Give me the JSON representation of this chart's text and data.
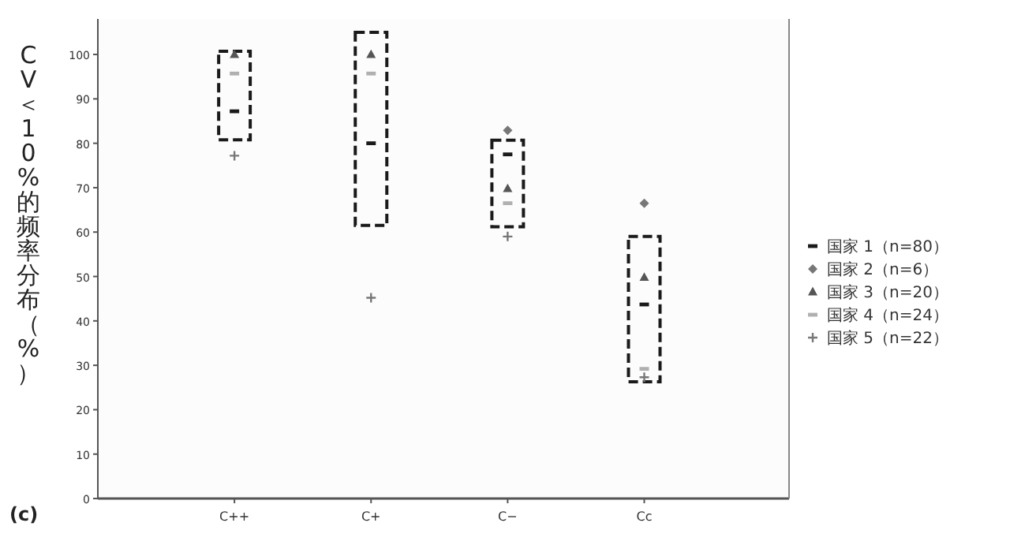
{
  "chart_data": {
    "type": "bar",
    "ylabel": "CV＜10%的频率分布（%）",
    "annotations": [
      "(c)"
    ],
    "categories": [
      "C++",
      "C+",
      "C−",
      "Cc"
    ],
    "ylim": [
      0,
      108
    ],
    "yticks": [
      0,
      10,
      20,
      30,
      40,
      50,
      60,
      70,
      80,
      90,
      100
    ],
    "legend": "right",
    "grid": false,
    "series": [
      {
        "type": "bar",
        "base": [
          80.8,
          61.5,
          61.2,
          26.3
        ],
        "values": [
          19.9,
          43.5,
          19.5,
          32.7
        ],
        "color": "#1a1a1a",
        "line_style": "dashed"
      },
      {
        "type": "scatter",
        "name": "国家 1（n=80）",
        "color": "#1a1a1a",
        "values": [
          87.2,
          80,
          77.5,
          43.7
        ]
      },
      {
        "type": "scatter",
        "name": "国家 2（n=6）",
        "marker": "diamond",
        "color": "#777777",
        "values": [
          null,
          null,
          82.9,
          66.5
        ]
      },
      {
        "type": "scatter",
        "name": "国家 3（n=20）",
        "marker": "triangle",
        "color": "#555555",
        "values": [
          100,
          100,
          69.8,
          49.8
        ]
      },
      {
        "type": "scatter",
        "name": "国家 4（n=24）",
        "color": "#b0b0b0",
        "values": [
          95.7,
          95.7,
          66.5,
          29.2
        ]
      },
      {
        "type": "scatter",
        "name": "国家 5（n=22）",
        "marker": "cross",
        "color": "#777777",
        "values": [
          77.2,
          45.2,
          59,
          27.3
        ]
      }
    ]
  }
}
